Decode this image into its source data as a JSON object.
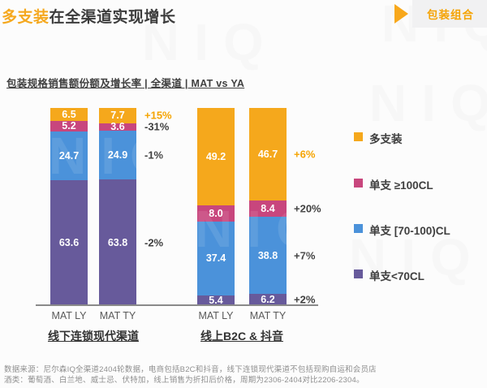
{
  "page": {
    "title_highlight": "多支装",
    "title_rest": "在全渠道实现增长",
    "badge_label": "包装组合",
    "watermark_text": "NIQ",
    "footnote_lines": [
      "数据来源：尼尔森IQ全渠道2404轮数据，电商包括B2C和抖音，线下连锁现代渠道不包括现购自运和会员店",
      "酒类：葡萄酒、白兰地、威士忌、伏特加，线上销售为折扣后价格，周期为2306-2404对比2206-2304。"
    ]
  },
  "chart_data": {
    "type": "bar",
    "variant": "stacked-100-percent",
    "title": "包装规格销售额份额及增长率 | 全渠道 | MAT vs YA",
    "unit": "%",
    "ylim": [
      0,
      100
    ],
    "grid": false,
    "legend_position": "right",
    "stack_order": "first series rendered at top of bar",
    "bar_labels": [
      "MAT LY",
      "MAT TY",
      "MAT LY",
      "MAT TY"
    ],
    "groups": [
      {
        "label": "线下连锁现代渠道",
        "bars": [
          0,
          1
        ],
        "growth_bar": 1
      },
      {
        "label": "线上B2C & 抖音",
        "bars": [
          2,
          3
        ],
        "growth_bar": 3
      }
    ],
    "series": [
      {
        "name": "多支装",
        "color": "#F5A81C",
        "values": [
          6.5,
          7.7,
          49.2,
          46.7
        ],
        "growth": [
          "+15%",
          "+6%"
        ],
        "growth_color": "#F5A400"
      },
      {
        "name": "单支 ≥100CL",
        "color": "#C8467D",
        "values": [
          5.2,
          3.6,
          8.0,
          8.4
        ],
        "growth": [
          "-31%",
          "+20%"
        ],
        "growth_color": "#404040"
      },
      {
        "name": "单支 [70-100)CL",
        "color": "#4B92DA",
        "values": [
          24.7,
          24.9,
          37.4,
          38.8
        ],
        "growth": [
          "-1%",
          "+7%"
        ],
        "growth_color": "#404040"
      },
      {
        "name": "单支<70CL",
        "color": "#675A9B",
        "values": [
          63.6,
          63.8,
          5.4,
          6.2
        ],
        "growth": [
          "-2%",
          "+2%"
        ],
        "growth_color": "#404040"
      }
    ]
  }
}
